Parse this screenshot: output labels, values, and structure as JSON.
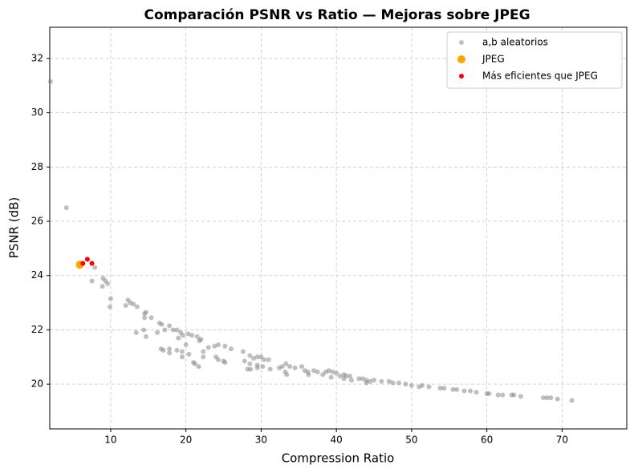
{
  "chart_data": {
    "type": "scatter",
    "title": "Comparación PSNR vs Ratio — Mejoras sobre JPEG",
    "x_label": "Compression Ratio",
    "y_label": "PSNR (dB)",
    "xlim": [
      1.9,
      78.6
    ],
    "ylim": [
      18.35,
      33.15
    ],
    "xticks": [
      10,
      20,
      30,
      40,
      50,
      60,
      70
    ],
    "yticks": [
      20,
      22,
      24,
      26,
      28,
      30,
      32
    ],
    "grid": true,
    "legend": "upper right",
    "series": [
      {
        "name": "a,b aleatorios",
        "color": "#808080",
        "x": [
          2,
          4.1,
          7.9,
          7.5,
          9,
          9.3,
          9.6,
          8.9,
          10,
          9.9,
          12.3,
          12.6,
          13,
          13.5,
          12,
          14.5,
          14.7,
          15.4,
          14.5,
          16.5,
          16.8,
          17.8,
          18.3,
          18.8,
          19.3,
          16.2,
          17.2,
          13.4,
          14.4,
          14.7,
          19,
          19.6,
          20.3,
          20.8,
          21.5,
          22,
          21.8,
          20,
          22.3,
          23,
          23.8,
          24.3,
          25.2,
          26,
          16.7,
          17,
          17.8,
          17.8,
          18.8,
          19.5,
          20.4,
          19.5,
          21,
          21.2,
          21.7,
          22.3,
          24,
          24.3,
          25,
          25.2,
          27.6,
          28.5,
          29,
          29.5,
          30,
          30.4,
          31,
          27.8,
          28.5,
          28.2,
          28.6,
          29.5,
          29.5,
          30.2,
          31.2,
          32.4,
          32.8,
          33.3,
          33.8,
          33.2,
          33.4,
          34.5,
          35.4,
          35.8,
          36.2,
          36.3,
          37,
          37.5,
          38.2,
          38.6,
          39,
          39.5,
          40,
          40.5,
          41,
          41.3,
          41.8,
          39.3,
          41,
          42,
          43,
          43.5,
          44,
          44.5,
          45,
          46,
          47,
          47.5,
          48.3,
          49.2,
          50,
          51,
          51.4,
          52.3,
          53.8,
          54.3,
          55.5,
          56,
          57,
          57.8,
          58.6,
          60,
          60.3,
          61.5,
          62.1,
          63.3,
          63.6,
          64.5,
          67.5,
          68,
          68.5,
          69.4,
          71.3,
          44
        ],
        "values": [
          31.15,
          26.5,
          24.3,
          23.8,
          23.9,
          23.8,
          23.7,
          23.6,
          23.15,
          22.85,
          23.1,
          23.0,
          22.95,
          22.85,
          22.9,
          22.6,
          22.65,
          22.45,
          22.45,
          22.25,
          22.2,
          22.15,
          22.0,
          22.0,
          21.9,
          21.9,
          22.0,
          21.9,
          22.0,
          21.75,
          21.7,
          21.8,
          21.85,
          21.8,
          21.75,
          21.65,
          21.6,
          21.45,
          21.2,
          21.35,
          21.4,
          21.45,
          21.4,
          21.3,
          21.3,
          21.25,
          21.3,
          21.15,
          21.25,
          21.2,
          21.1,
          21.0,
          20.8,
          20.75,
          20.65,
          21.0,
          21.0,
          20.9,
          20.85,
          20.8,
          21.2,
          21.05,
          20.95,
          21.0,
          21.0,
          20.9,
          20.9,
          20.85,
          20.75,
          20.55,
          20.55,
          20.6,
          20.7,
          20.65,
          20.55,
          20.6,
          20.65,
          20.75,
          20.65,
          20.45,
          20.35,
          20.6,
          20.65,
          20.5,
          20.45,
          20.35,
          20.5,
          20.45,
          20.35,
          20.45,
          20.5,
          20.45,
          20.4,
          20.3,
          20.35,
          20.3,
          20.3,
          20.25,
          20.2,
          20.15,
          20.2,
          20.2,
          20.15,
          20.1,
          20.15,
          20.1,
          20.1,
          20.05,
          20.05,
          20.0,
          19.95,
          19.9,
          19.95,
          19.9,
          19.85,
          19.85,
          19.8,
          19.8,
          19.75,
          19.75,
          19.7,
          19.65,
          19.65,
          19.6,
          19.6,
          19.6,
          19.6,
          19.55,
          19.5,
          19.5,
          19.5,
          19.45,
          19.4,
          20.05
        ]
      },
      {
        "name": "JPEG",
        "color": "#ffa500",
        "x": [
          5.9
        ],
        "values": [
          24.4
        ]
      },
      {
        "name": "Más eficientes que JPEG",
        "color": "#ff0000",
        "x": [
          6.3,
          6.9,
          7.5
        ],
        "values": [
          24.45,
          24.6,
          24.45
        ]
      }
    ]
  }
}
